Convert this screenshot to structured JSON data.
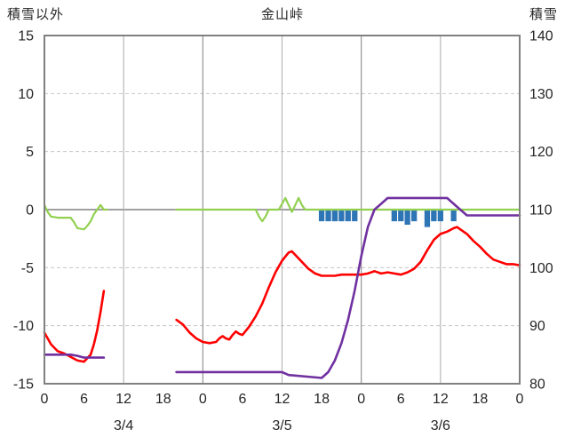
{
  "chart_data": {
    "type": "line",
    "title": "金山峠",
    "left_axis": {
      "title": "積雪以外",
      "min": -15,
      "max": 15,
      "ticks": [
        15,
        10,
        5,
        0,
        -5,
        -10,
        -15
      ]
    },
    "right_axis": {
      "title": "積雪",
      "min": 80,
      "max": 140,
      "ticks": [
        140,
        130,
        120,
        110,
        100,
        90,
        80
      ]
    },
    "x_axis": {
      "unit": "hour",
      "range_hours": [
        0,
        72
      ],
      "hour_ticks": [
        {
          "t": 0,
          "label": "0"
        },
        {
          "t": 6,
          "label": "6"
        },
        {
          "t": 12,
          "label": "12"
        },
        {
          "t": 18,
          "label": "18"
        },
        {
          "t": 24,
          "label": "0"
        },
        {
          "t": 30,
          "label": "6"
        },
        {
          "t": 36,
          "label": "12"
        },
        {
          "t": 42,
          "label": "18"
        },
        {
          "t": 48,
          "label": "0"
        },
        {
          "t": 54,
          "label": "6"
        },
        {
          "t": 60,
          "label": "12"
        },
        {
          "t": 66,
          "label": "18"
        },
        {
          "t": 72,
          "label": "0"
        }
      ],
      "day_labels": [
        {
          "t": 12,
          "label": "3/4"
        },
        {
          "t": 36,
          "label": "3/5"
        },
        {
          "t": 60,
          "label": "3/6"
        }
      ],
      "gridline_hours": [
        12,
        24,
        36,
        48,
        60
      ]
    },
    "grid": {
      "h_dashed": "#c6c6c6",
      "v_solid": "#b3b3b3",
      "v_major": "#8a8a8a",
      "zero": "#808080",
      "frame": "#808080",
      "tick_text": "#262626"
    },
    "series": [
      {
        "name": "red-line",
        "color": "#ff0000",
        "axis": "left",
        "width": 2.6,
        "segments": [
          [
            [
              0,
              -10.6
            ],
            [
              1,
              -11.6
            ],
            [
              2,
              -12.2
            ],
            [
              3,
              -12.4
            ],
            [
              4,
              -12.7
            ],
            [
              5,
              -13
            ],
            [
              6,
              -13.1
            ],
            [
              7,
              -12.5
            ],
            [
              7.5,
              -11.6
            ],
            [
              8,
              -10.4
            ],
            [
              8.5,
              -8.8
            ],
            [
              9,
              -7
            ]
          ],
          [
            [
              20,
              -9.5
            ],
            [
              21,
              -9.9
            ],
            [
              22,
              -10.6
            ],
            [
              23,
              -11.1
            ],
            [
              24,
              -11.4
            ],
            [
              25,
              -11.5
            ],
            [
              26,
              -11.4
            ],
            [
              26.5,
              -11.1
            ],
            [
              27,
              -10.9
            ],
            [
              27.5,
              -11.1
            ],
            [
              28,
              -11.2
            ],
            [
              28.5,
              -10.8
            ],
            [
              29,
              -10.5
            ],
            [
              29.5,
              -10.7
            ],
            [
              30,
              -10.8
            ],
            [
              31,
              -10.1
            ],
            [
              32,
              -9.2
            ],
            [
              33,
              -8.1
            ],
            [
              34,
              -6.7
            ],
            [
              35,
              -5.4
            ],
            [
              36,
              -4.4
            ],
            [
              37,
              -3.7
            ],
            [
              37.5,
              -3.6
            ],
            [
              38,
              -3.9
            ],
            [
              39,
              -4.5
            ],
            [
              40,
              -5.1
            ],
            [
              41,
              -5.5
            ],
            [
              42,
              -5.7
            ],
            [
              43,
              -5.7
            ],
            [
              44,
              -5.7
            ],
            [
              45,
              -5.6
            ],
            [
              46,
              -5.6
            ],
            [
              47,
              -5.6
            ],
            [
              48,
              -5.6
            ],
            [
              49,
              -5.5
            ],
            [
              50,
              -5.3
            ],
            [
              51,
              -5.5
            ],
            [
              52,
              -5.4
            ],
            [
              53,
              -5.5
            ],
            [
              54,
              -5.6
            ],
            [
              55,
              -5.4
            ],
            [
              56,
              -5.1
            ],
            [
              57,
              -4.5
            ],
            [
              58,
              -3.5
            ],
            [
              59,
              -2.6
            ],
            [
              60,
              -2.1
            ],
            [
              61,
              -1.9
            ],
            [
              62,
              -1.6
            ],
            [
              62.5,
              -1.5
            ],
            [
              63,
              -1.7
            ],
            [
              64,
              -2.1
            ],
            [
              65,
              -2.7
            ],
            [
              66,
              -3.2
            ],
            [
              67,
              -3.8
            ],
            [
              68,
              -4.3
            ],
            [
              69,
              -4.5
            ],
            [
              70,
              -4.7
            ],
            [
              71,
              -4.7
            ],
            [
              72,
              -4.8
            ]
          ]
        ]
      },
      {
        "name": "green-line",
        "color": "#92d050",
        "axis": "left",
        "width": 2.2,
        "segments": [
          [
            [
              0,
              0.4
            ],
            [
              0.5,
              -0.2
            ],
            [
              1,
              -0.6
            ],
            [
              2,
              -0.7
            ],
            [
              3,
              -0.7
            ],
            [
              4,
              -0.7
            ],
            [
              4.5,
              -1.1
            ],
            [
              5,
              -1.6
            ],
            [
              6,
              -1.7
            ],
            [
              6.5,
              -1.4
            ],
            [
              7,
              -1
            ],
            [
              7.5,
              -0.4
            ],
            [
              8,
              0
            ],
            [
              8.5,
              0.4
            ],
            [
              9,
              0
            ],
            [
              9.5,
              0
            ]
          ],
          [
            [
              20,
              0
            ],
            [
              32,
              0
            ],
            [
              32.5,
              -0.6
            ],
            [
              33,
              -1
            ],
            [
              33.5,
              -0.6
            ],
            [
              34,
              0
            ],
            [
              35.5,
              0
            ],
            [
              36,
              0.5
            ],
            [
              36.5,
              1
            ],
            [
              37,
              0.4
            ],
            [
              37.5,
              -0.2
            ],
            [
              38,
              0.4
            ],
            [
              38.5,
              1
            ],
            [
              39,
              0.4
            ],
            [
              39.5,
              0
            ],
            [
              72,
              0
            ]
          ]
        ]
      },
      {
        "name": "purple-line",
        "color": "#7030a0",
        "axis": "right",
        "width": 2.6,
        "segments": [
          [
            [
              0,
              85
            ],
            [
              4,
              85
            ],
            [
              5,
              84.8
            ],
            [
              6,
              84.5
            ],
            [
              9,
              84.5
            ]
          ],
          [
            [
              20,
              82
            ],
            [
              36,
              82
            ],
            [
              37,
              81.5
            ],
            [
              42,
              81
            ],
            [
              43,
              82
            ],
            [
              44,
              84
            ],
            [
              45,
              87
            ],
            [
              46,
              91
            ],
            [
              47,
              96
            ],
            [
              48,
              102
            ],
            [
              49,
              107
            ],
            [
              50,
              110
            ],
            [
              51,
              111
            ],
            [
              52,
              112
            ],
            [
              61,
              112
            ],
            [
              62,
              111
            ],
            [
              63,
              110
            ],
            [
              64,
              109
            ],
            [
              72,
              109
            ]
          ]
        ]
      }
    ],
    "bars": {
      "name": "blue-bars",
      "color": "#2e75b6",
      "axis": "left",
      "bar_width_hours": 0.85,
      "points": [
        [
          42,
          -1
        ],
        [
          43,
          -1
        ],
        [
          44,
          -1
        ],
        [
          45,
          -1
        ],
        [
          46,
          -1
        ],
        [
          47,
          -1
        ],
        [
          53,
          -1
        ],
        [
          54,
          -1
        ],
        [
          55,
          -1.3
        ],
        [
          56,
          -1
        ],
        [
          58,
          -1.5
        ],
        [
          59,
          -1
        ],
        [
          60,
          -1
        ],
        [
          62,
          -1
        ]
      ]
    }
  }
}
